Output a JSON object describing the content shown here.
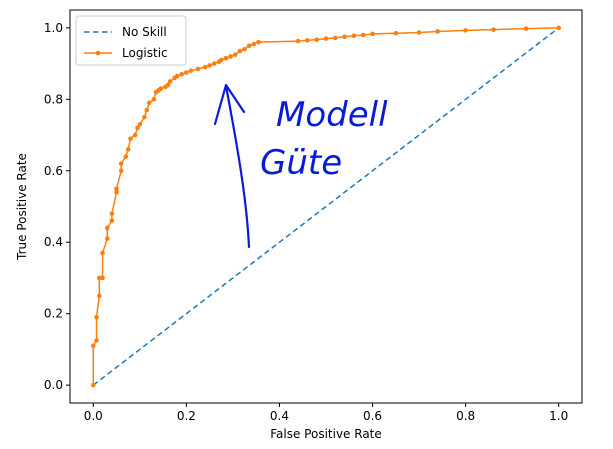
{
  "chart_data": {
    "type": "line",
    "title": "",
    "xlabel": "False Positive Rate",
    "ylabel": "True Positive Rate",
    "xlim": [
      -0.05,
      1.05
    ],
    "ylim": [
      -0.05,
      1.05
    ],
    "xticks": [
      "0.0",
      "0.2",
      "0.4",
      "0.6",
      "0.8",
      "1.0"
    ],
    "yticks": [
      "0.0",
      "0.2",
      "0.4",
      "0.6",
      "0.8",
      "1.0"
    ],
    "grid": false,
    "legend_position": "top-left",
    "series": [
      {
        "name": "No Skill",
        "color": "#1f77b4",
        "style": "dashed",
        "markers": false,
        "x": [
          0,
          1
        ],
        "y": [
          0,
          1
        ]
      },
      {
        "name": "Logistic",
        "color": "#ff7f0e",
        "style": "solid",
        "markers": true,
        "x": [
          0.0,
          0.0,
          0.007,
          0.007,
          0.013,
          0.013,
          0.02,
          0.02,
          0.03,
          0.03,
          0.04,
          0.04,
          0.05,
          0.05,
          0.06,
          0.06,
          0.07,
          0.075,
          0.08,
          0.09,
          0.095,
          0.1,
          0.11,
          0.115,
          0.12,
          0.13,
          0.135,
          0.14,
          0.145,
          0.155,
          0.16,
          0.165,
          0.175,
          0.18,
          0.19,
          0.2,
          0.21,
          0.225,
          0.24,
          0.25,
          0.26,
          0.27,
          0.275,
          0.285,
          0.295,
          0.305,
          0.315,
          0.325,
          0.335,
          0.345,
          0.355,
          0.44,
          0.46,
          0.48,
          0.5,
          0.52,
          0.54,
          0.56,
          0.58,
          0.6,
          0.65,
          0.7,
          0.74,
          0.8,
          0.86,
          0.93,
          1.0
        ],
        "y": [
          0.0,
          0.11,
          0.125,
          0.19,
          0.25,
          0.3,
          0.3,
          0.37,
          0.41,
          0.44,
          0.46,
          0.48,
          0.54,
          0.55,
          0.6,
          0.62,
          0.64,
          0.66,
          0.69,
          0.7,
          0.72,
          0.73,
          0.75,
          0.77,
          0.79,
          0.8,
          0.82,
          0.825,
          0.83,
          0.835,
          0.84,
          0.85,
          0.86,
          0.865,
          0.87,
          0.875,
          0.88,
          0.885,
          0.89,
          0.895,
          0.9,
          0.905,
          0.91,
          0.915,
          0.92,
          0.925,
          0.935,
          0.94,
          0.95,
          0.955,
          0.96,
          0.963,
          0.965,
          0.967,
          0.97,
          0.972,
          0.975,
          0.978,
          0.98,
          0.983,
          0.985,
          0.987,
          0.99,
          0.993,
          0.995,
          0.998,
          1.0
        ]
      }
    ],
    "annotation": {
      "text_line1": "Modell",
      "text_line2": "Güte",
      "color": "#0a1bd6"
    }
  }
}
